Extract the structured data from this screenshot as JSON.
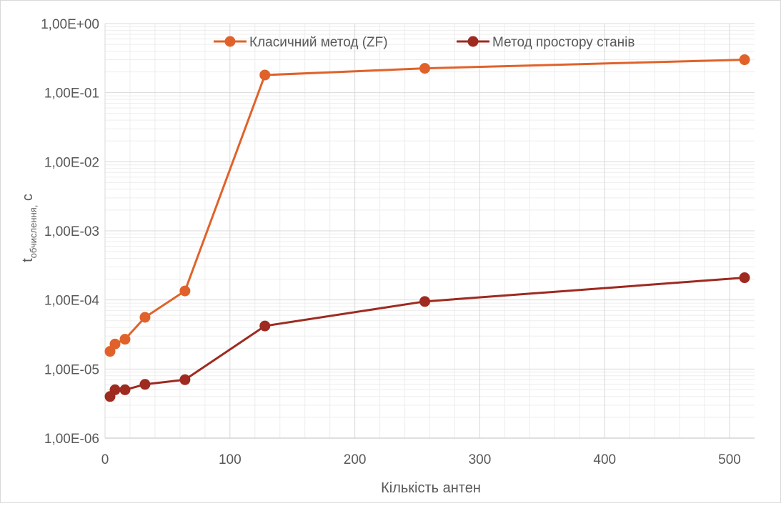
{
  "chart_data": {
    "type": "line",
    "title": "",
    "xlabel": "Кількість антен",
    "ylabel_main": "t",
    "ylabel_sub": "обчислення,",
    "ylabel_unit": " с",
    "xlim": [
      0,
      520
    ],
    "ylim": [
      1e-06,
      1
    ],
    "y_scale": "log",
    "grid": true,
    "legend_position": "top",
    "x_ticks": [
      {
        "value": 0,
        "label": "0"
      },
      {
        "value": 100,
        "label": "100"
      },
      {
        "value": 200,
        "label": "200"
      },
      {
        "value": 300,
        "label": "300"
      },
      {
        "value": 400,
        "label": "400"
      },
      {
        "value": 500,
        "label": "500"
      }
    ],
    "y_ticks": [
      {
        "value": 1,
        "label": "1,00E+00"
      },
      {
        "value": 0.1,
        "label": "1,00E-01"
      },
      {
        "value": 0.01,
        "label": "1,00E-02"
      },
      {
        "value": 0.001,
        "label": "1,00E-03"
      },
      {
        "value": 0.0001,
        "label": "1,00E-04"
      },
      {
        "value": 1e-05,
        "label": "1,00E-05"
      },
      {
        "value": 1e-06,
        "label": "1,00E-06"
      }
    ],
    "series": [
      {
        "name": "Класичний метод (ZF)",
        "color": "#e0622a",
        "x": [
          4,
          8,
          16,
          32,
          64,
          128,
          256,
          512
        ],
        "values": [
          1.8e-05,
          2.3e-05,
          2.7e-05,
          5.6e-05,
          0.000135,
          0.18,
          0.225,
          0.3
        ]
      },
      {
        "name": "Метод простору станів",
        "color": "#9e2a20",
        "x": [
          4,
          8,
          16,
          32,
          64,
          128,
          256,
          512
        ],
        "values": [
          4e-06,
          5e-06,
          5e-06,
          6e-06,
          7e-06,
          4.2e-05,
          9.5e-05,
          0.00021
        ]
      }
    ]
  }
}
